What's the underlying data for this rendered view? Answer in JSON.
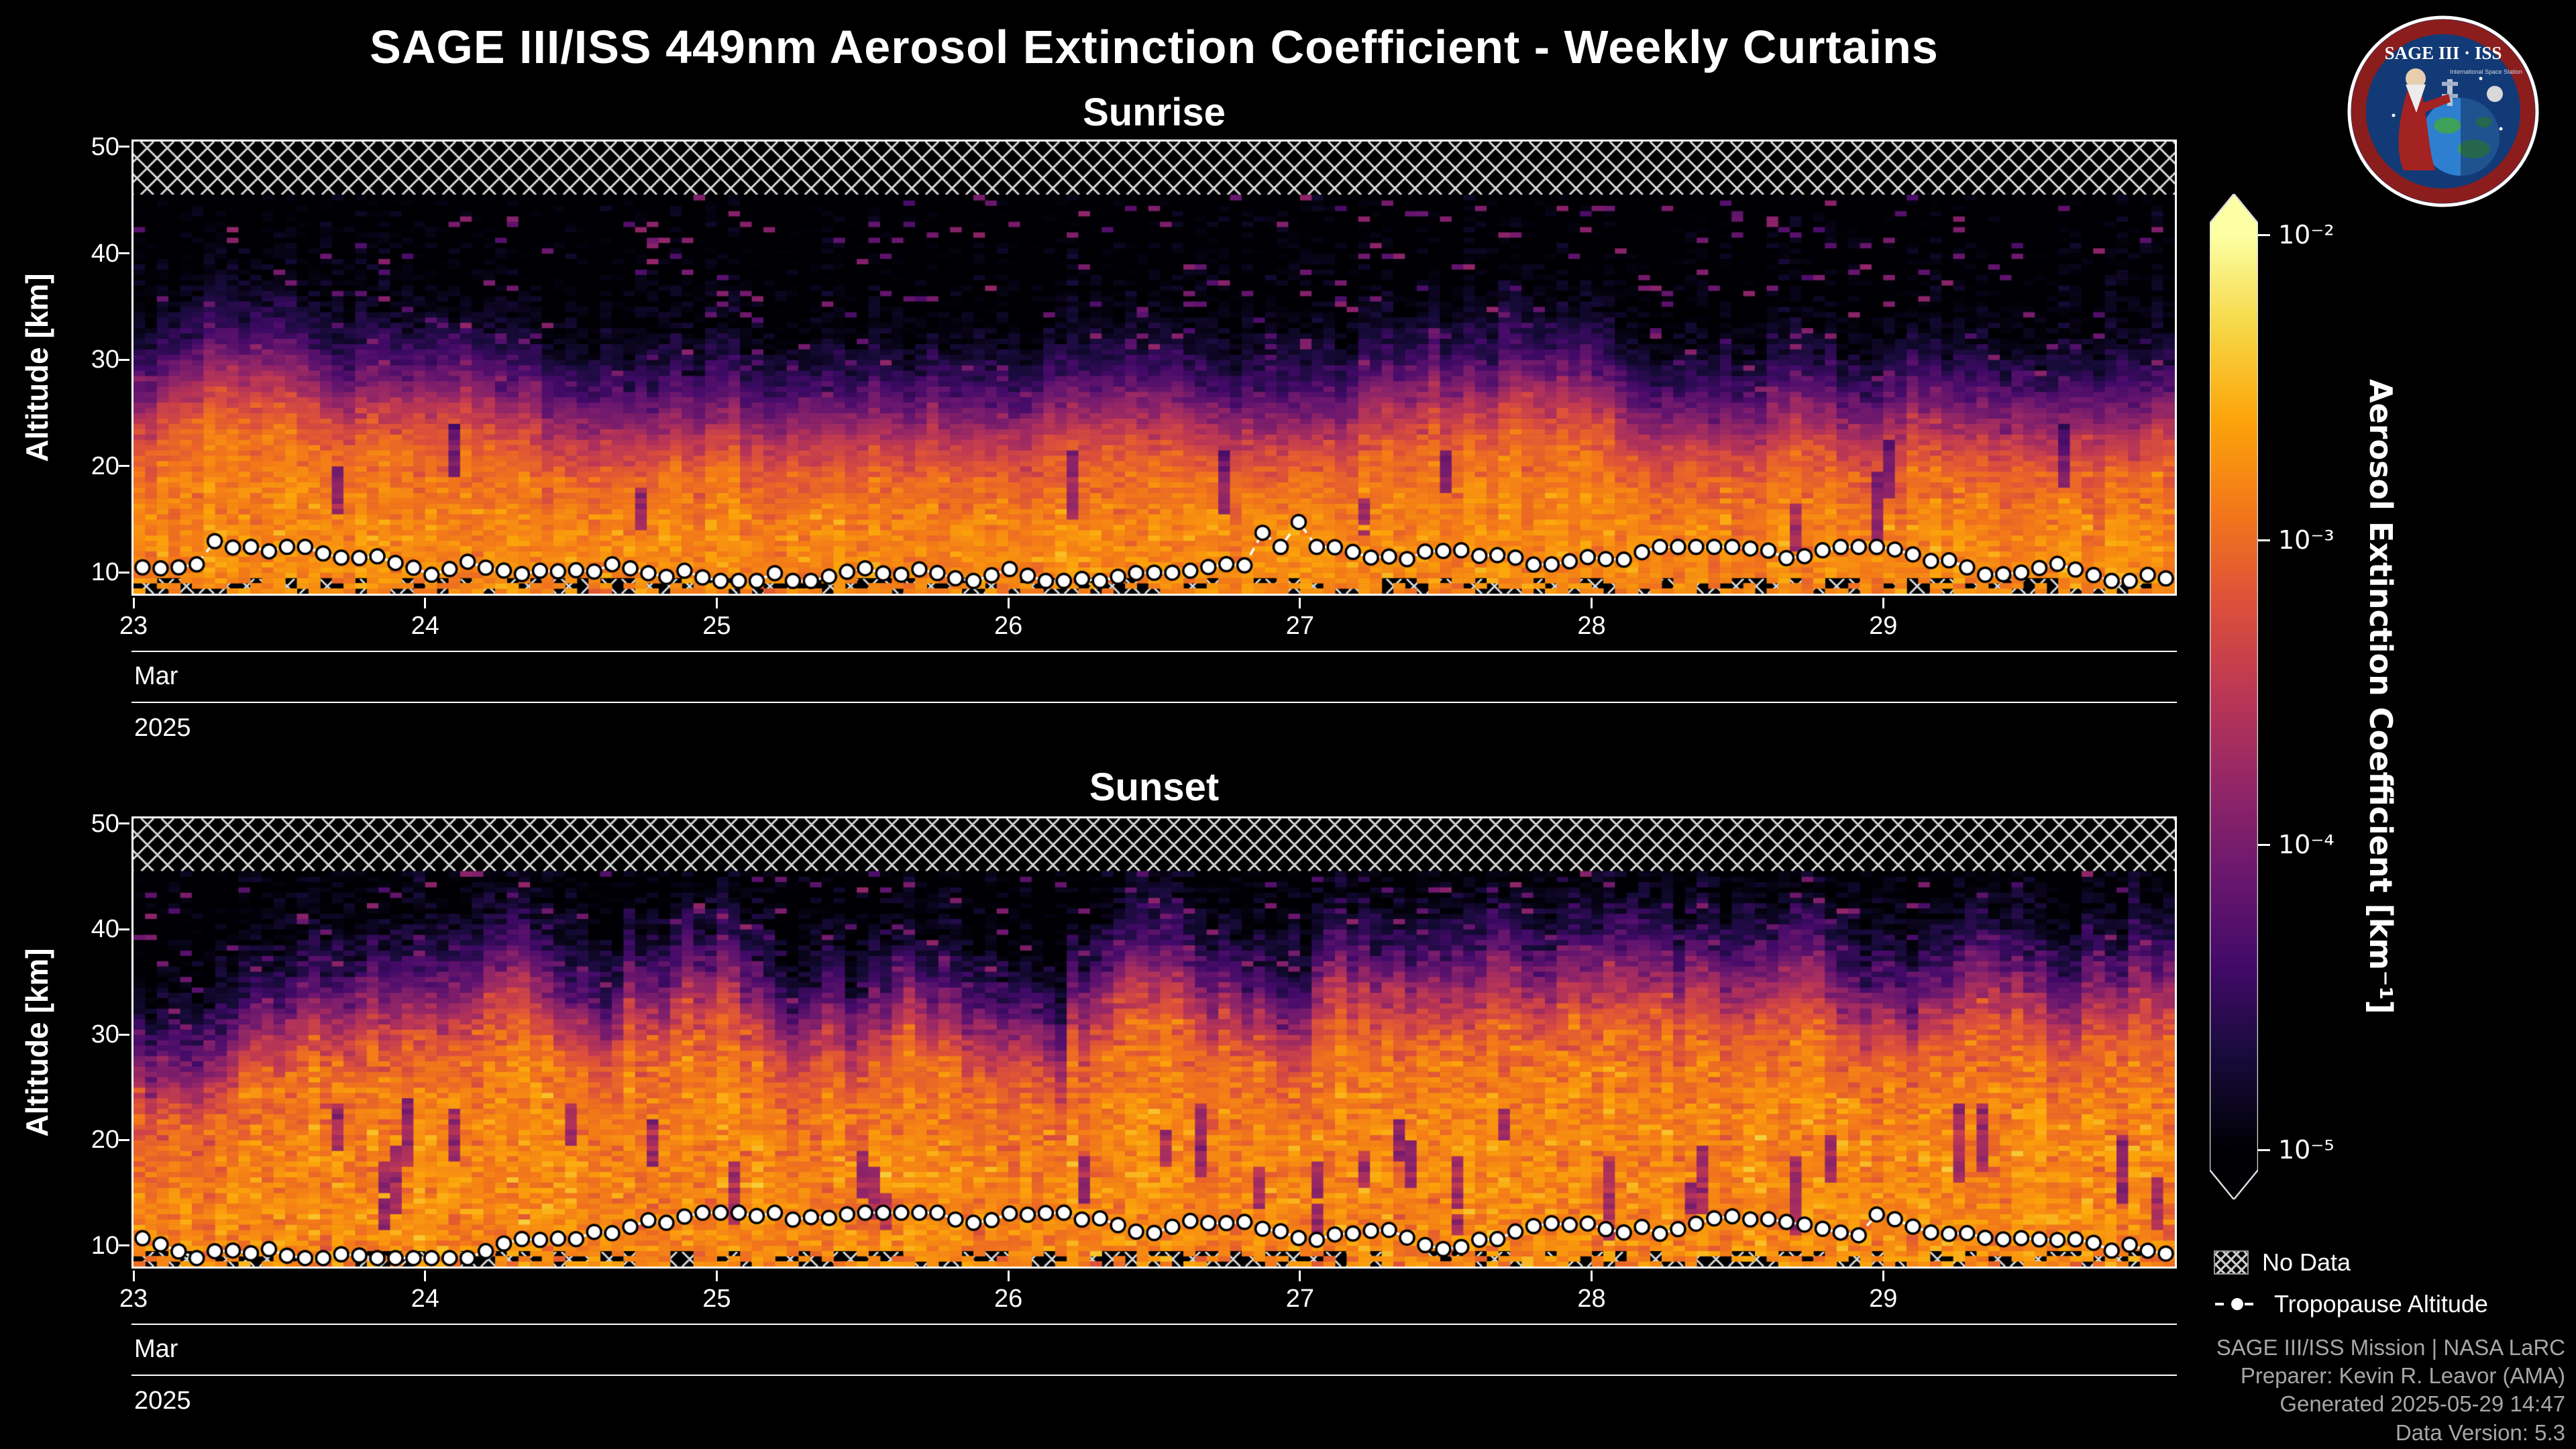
{
  "chart_data": {
    "type": "heatmap",
    "title": "SAGE III/ISS 449nm Aerosol Extinction Coefficient - Weekly Curtains",
    "panels": [
      {
        "title": "Sunrise",
        "seed": 101,
        "band_offset_km": 0,
        "band_walk_step": 1.3,
        "band_walk_range": [
          -2.5,
          3.2
        ],
        "plume_prob": 0.0,
        "gap_prob": 0.05,
        "sigma": 0.26,
        "trop_range_km": [
          9.2,
          12.4
        ]
      },
      {
        "title": "Sunset",
        "seed": 202,
        "band_offset_km": 2.4,
        "band_walk_step": 2.1,
        "band_walk_range": [
          -3.5,
          7.5
        ],
        "plume_prob": 0.07,
        "gap_prob": 0.16,
        "sigma": 0.34,
        "trop_range_km": [
          8.8,
          13.1
        ]
      }
    ],
    "x": {
      "month": "Mar",
      "year": "2025",
      "days": [
        "23",
        "24",
        "25",
        "26",
        "27",
        "28",
        "29"
      ],
      "cols_per_day": 25
    },
    "y": {
      "label": "Altitude [km]",
      "ticks": [
        10,
        20,
        30,
        40,
        50
      ],
      "range": [
        8,
        50.5
      ]
    },
    "colorbar": {
      "label": "Aerosol Extinction Coefficient [km⁻¹]",
      "vmin_log": -5,
      "vmax_log": -2,
      "ticks": [
        {
          "v": -2,
          "label": "10⁻²"
        },
        {
          "v": -3,
          "label": "10⁻³"
        },
        {
          "v": -4,
          "label": "10⁻⁴"
        },
        {
          "v": -5,
          "label": "10⁻⁵"
        }
      ],
      "colormap": "inferno",
      "stops": [
        [
          0,
          "#000004"
        ],
        [
          0.1,
          "#160b39"
        ],
        [
          0.2,
          "#420a68"
        ],
        [
          0.3,
          "#6a176e"
        ],
        [
          0.4,
          "#932667"
        ],
        [
          0.5,
          "#bc3754"
        ],
        [
          0.6,
          "#dd513a"
        ],
        [
          0.7,
          "#f37819"
        ],
        [
          0.8,
          "#fca50a"
        ],
        [
          0.9,
          "#f6d746"
        ],
        [
          1,
          "#fcffa4"
        ]
      ]
    },
    "no_data_above_km": 45.5,
    "no_data_below_km": 9.4,
    "profile_log10_extinction_by_altitude_km": [
      [
        8,
        -2.8
      ],
      [
        13,
        -2.8
      ],
      [
        17,
        -2.9
      ],
      [
        21,
        -3.05
      ],
      [
        24,
        -3.45
      ],
      [
        27,
        -4.0
      ],
      [
        30,
        -4.5
      ],
      [
        34,
        -4.9
      ],
      [
        38,
        -5.05
      ],
      [
        50,
        -5.15
      ]
    ],
    "tropopause": {
      "mean_km": 10.3,
      "points_per_panel": 113
    },
    "legend": {
      "no_data": "No Data",
      "tropopause": "Tropopause Altitude"
    }
  },
  "logo": {
    "title": "SAGE III · ISS",
    "subtext": "International Space Station"
  },
  "attribution": [
    "SAGE III/ISS Mission | NASA LaRC",
    "Preparer: Kevin R. Leavor (AMA)",
    "Generated 2025-05-29 14:47",
    "Data Version: 5.3"
  ]
}
